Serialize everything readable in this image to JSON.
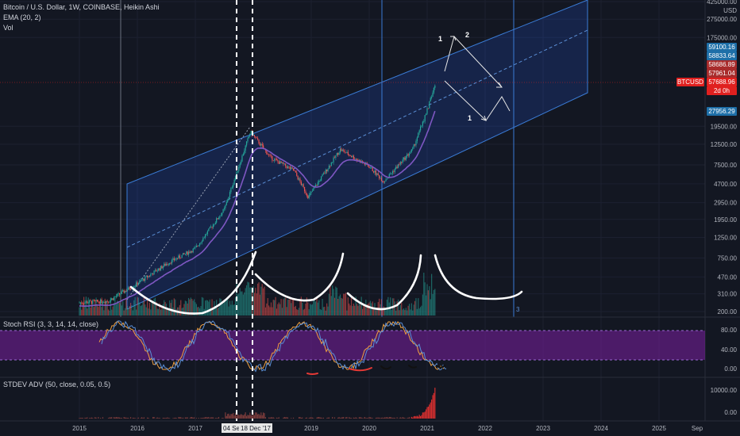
{
  "header": {
    "title": "Bitcoin / U.S. Dollar, 1W, COINBASE, Heikin Ashi",
    "ema": "EMA (20, 2)",
    "vol": "Vol"
  },
  "panes": {
    "stoch_title": "Stoch RSI (3, 3, 14, 14, close)",
    "stdev_title": "STDEV ADV (50, close, 0.05, 0.5)"
  },
  "price_axis": {
    "currency": "USD",
    "labels": [
      "425000.00",
      "275000.00",
      "175000.00",
      "19500.00",
      "12500.00",
      "7500.00",
      "4700.00",
      "2950.00",
      "1950.00",
      "1250.00",
      "750.00",
      "470.00",
      "310.00",
      "200.00"
    ]
  },
  "price_tags": [
    {
      "label": "59100.16",
      "color": "#1e6fa8"
    },
    {
      "label": "58833.64",
      "color": "#1e6fa8"
    },
    {
      "label": "58686.89",
      "color": "#a82b2b"
    },
    {
      "label": "57961.04",
      "color": "#a82b2b"
    },
    {
      "label": "27956.29",
      "color": "#1e6fa8"
    }
  ],
  "current_price": {
    "symbol": "BTCUSD",
    "price": "57688.96",
    "countdown": "2d 0h",
    "color": "#e0201f"
  },
  "stoch_axis": [
    "80.00",
    "40.00",
    "0.00"
  ],
  "stdev_axis": [
    "10000.00",
    "0.00"
  ],
  "time_axis": [
    "2015",
    "2016",
    "2017",
    "2019",
    "2020",
    "2021",
    "2022",
    "2023",
    "2024",
    "2025",
    "Sep"
  ],
  "marker_dates": [
    "04 Se",
    "18 Dec '17"
  ],
  "annotations": [
    "1",
    "2",
    "1",
    "2",
    "3"
  ],
  "colors": {
    "background": "#131722",
    "channel": "#2962ff",
    "bull": "#26a69a",
    "bear": "#ef5350",
    "ema": "#7e57c2",
    "stoch_band": "#7b1fa2"
  },
  "chart_data": {
    "type": "line",
    "title": "Bitcoin / U.S. Dollar, 1W, COINBASE, Heikin Ashi",
    "scale": "log",
    "x": [
      2015.0,
      2015.5,
      2016.0,
      2016.5,
      2017.0,
      2017.5,
      2017.95,
      2018.3,
      2018.7,
      2018.95,
      2019.5,
      2020.0,
      2020.25,
      2020.75,
      2021.0,
      2021.15
    ],
    "series": [
      {
        "name": "BTCUSD",
        "values": [
          250,
          260,
          400,
          650,
          950,
          2500,
          17000,
          9000,
          6500,
          3400,
          11000,
          7200,
          5000,
          11000,
          29000,
          57689
        ]
      }
    ],
    "ylim": [
      200,
      425000
    ],
    "xlim": [
      2014.9,
      2025.7
    ]
  }
}
